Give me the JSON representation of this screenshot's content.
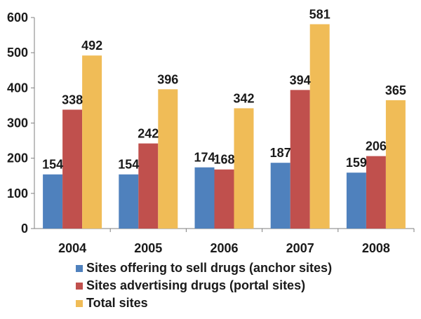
{
  "chart_data": {
    "type": "bar",
    "categories": [
      "2004",
      "2005",
      "2006",
      "2007",
      "2008"
    ],
    "series": [
      {
        "name": "Sites offering to sell drugs (anchor sites)",
        "values": [
          154,
          154,
          174,
          187,
          159
        ],
        "color": "#4f81bd"
      },
      {
        "name": "Sites advertising drugs (portal sites)",
        "values": [
          338,
          242,
          168,
          394,
          206
        ],
        "color": "#c0504d"
      },
      {
        "name": "Total sites",
        "values": [
          492,
          396,
          342,
          581,
          365
        ],
        "color": "#f0bc57"
      }
    ],
    "yticks": [
      "0",
      "100",
      "200",
      "300",
      "400",
      "500",
      "600"
    ],
    "ylim": [
      0,
      600
    ],
    "grid": false,
    "legend_position": "bottom"
  }
}
